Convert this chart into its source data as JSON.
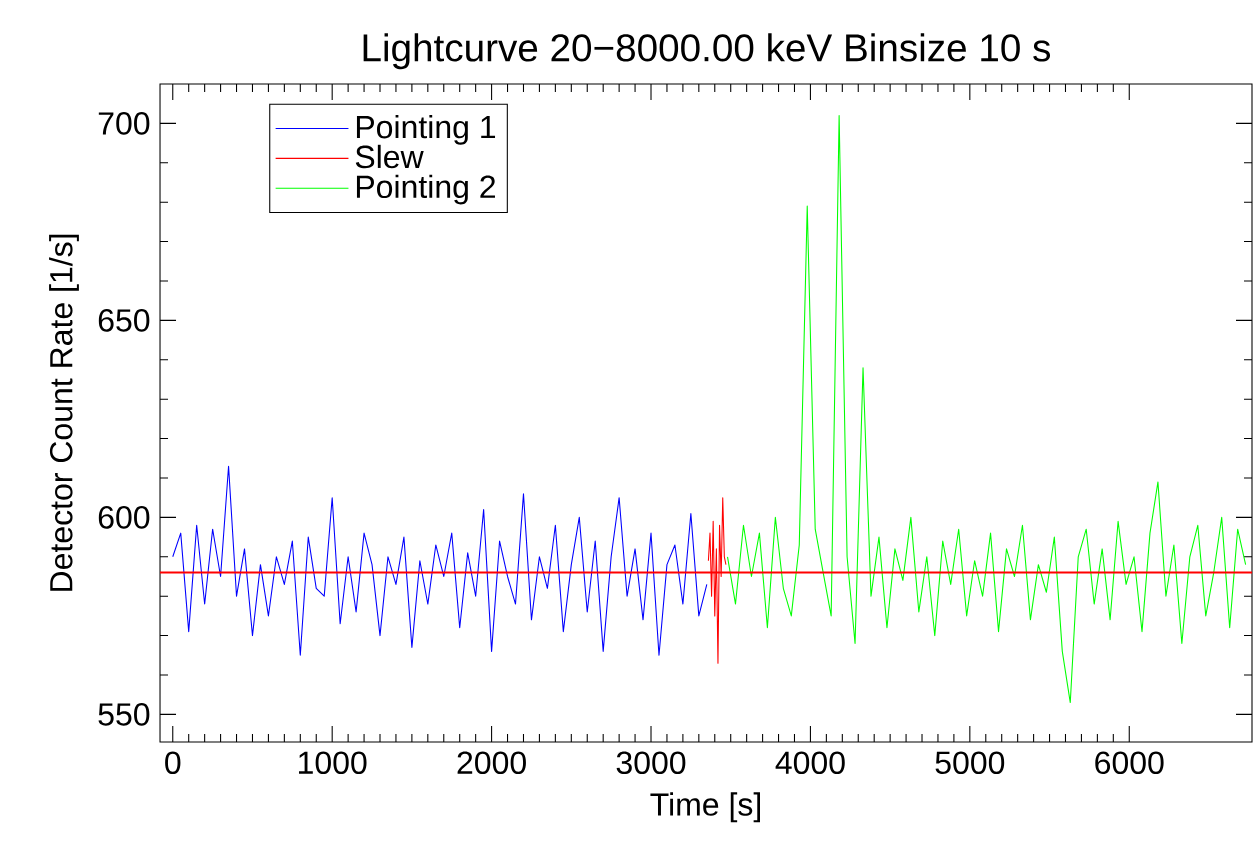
{
  "chart_data": {
    "type": "line",
    "title": "Lightcurve 20−8000.00 keV Binsize 10 s",
    "xlabel": "Time [s]",
    "ylabel": "Detector Count Rate [1/s]",
    "xlim": [
      -80,
      6770
    ],
    "ylim": [
      543,
      710
    ],
    "xticks": [
      0,
      1000,
      2000,
      3000,
      4000,
      5000,
      6000
    ],
    "yticks": [
      550,
      600,
      650,
      700
    ],
    "legend": "top left",
    "grid": false,
    "series": [
      {
        "name": "Pointing 1",
        "color": "#0000ff",
        "x": [
          0,
          50,
          100,
          150,
          200,
          250,
          300,
          350,
          400,
          450,
          500,
          550,
          600,
          650,
          700,
          750,
          800,
          850,
          900,
          950,
          1000,
          1050,
          1100,
          1150,
          1200,
          1250,
          1300,
          1350,
          1400,
          1450,
          1500,
          1550,
          1600,
          1650,
          1700,
          1750,
          1800,
          1850,
          1900,
          1950,
          2000,
          2050,
          2100,
          2150,
          2200,
          2250,
          2300,
          2350,
          2400,
          2450,
          2500,
          2550,
          2600,
          2650,
          2700,
          2750,
          2800,
          2850,
          2900,
          2950,
          3000,
          3050,
          3100,
          3150,
          3200,
          3250,
          3300,
          3350
        ],
        "values": [
          590,
          596,
          571,
          598,
          578,
          597,
          585,
          613,
          580,
          592,
          570,
          588,
          575,
          590,
          583,
          594,
          565,
          595,
          582,
          580,
          605,
          573,
          590,
          576,
          596,
          588,
          570,
          590,
          583,
          595,
          567,
          589,
          578,
          593,
          585,
          596,
          572,
          591,
          580,
          602,
          566,
          594,
          585,
          578,
          606,
          574,
          590,
          582,
          598,
          571,
          588,
          600,
          576,
          594,
          566,
          590,
          605,
          580,
          592,
          574,
          596,
          565,
          588,
          593,
          578,
          601,
          575,
          583
        ]
      },
      {
        "name": "Slew",
        "color": "#ff0000",
        "x": [
          3360,
          3370,
          3380,
          3390,
          3400,
          3410,
          3420,
          3430,
          3440,
          3450,
          3460,
          3470
        ],
        "values": [
          589,
          596,
          580,
          599,
          575,
          592,
          563,
          598,
          585,
          605,
          590,
          588
        ]
      },
      {
        "name": "Pointing 2",
        "color": "#00ff00",
        "x": [
          3480,
          3530,
          3580,
          3630,
          3680,
          3730,
          3780,
          3830,
          3880,
          3930,
          3980,
          4030,
          4080,
          4130,
          4180,
          4230,
          4280,
          4330,
          4380,
          4430,
          4480,
          4530,
          4580,
          4630,
          4680,
          4730,
          4780,
          4830,
          4880,
          4930,
          4980,
          5030,
          5080,
          5130,
          5180,
          5230,
          5280,
          5330,
          5380,
          5430,
          5480,
          5530,
          5580,
          5630,
          5680,
          5730,
          5780,
          5830,
          5880,
          5930,
          5980,
          6030,
          6080,
          6130,
          6180,
          6230,
          6280,
          6330,
          6380,
          6430,
          6480,
          6530,
          6580,
          6630,
          6680,
          6730
        ],
        "values": [
          590,
          578,
          598,
          585,
          596,
          572,
          600,
          582,
          575,
          593,
          679,
          597,
          586,
          575,
          702,
          590,
          568,
          638,
          580,
          595,
          572,
          592,
          584,
          600,
          576,
          590,
          570,
          594,
          583,
          597,
          575,
          589,
          580,
          596,
          571,
          592,
          585,
          598,
          574,
          588,
          581,
          595,
          566,
          553,
          590,
          597,
          578,
          592,
          574,
          599,
          583,
          590,
          571,
          596,
          609,
          580,
          593,
          568,
          590,
          598,
          575,
          586,
          600,
          572,
          597,
          588
        ]
      }
    ],
    "ref_lines": [
      {
        "axis": "y",
        "value": 586,
        "color": "#ff0000"
      }
    ]
  }
}
